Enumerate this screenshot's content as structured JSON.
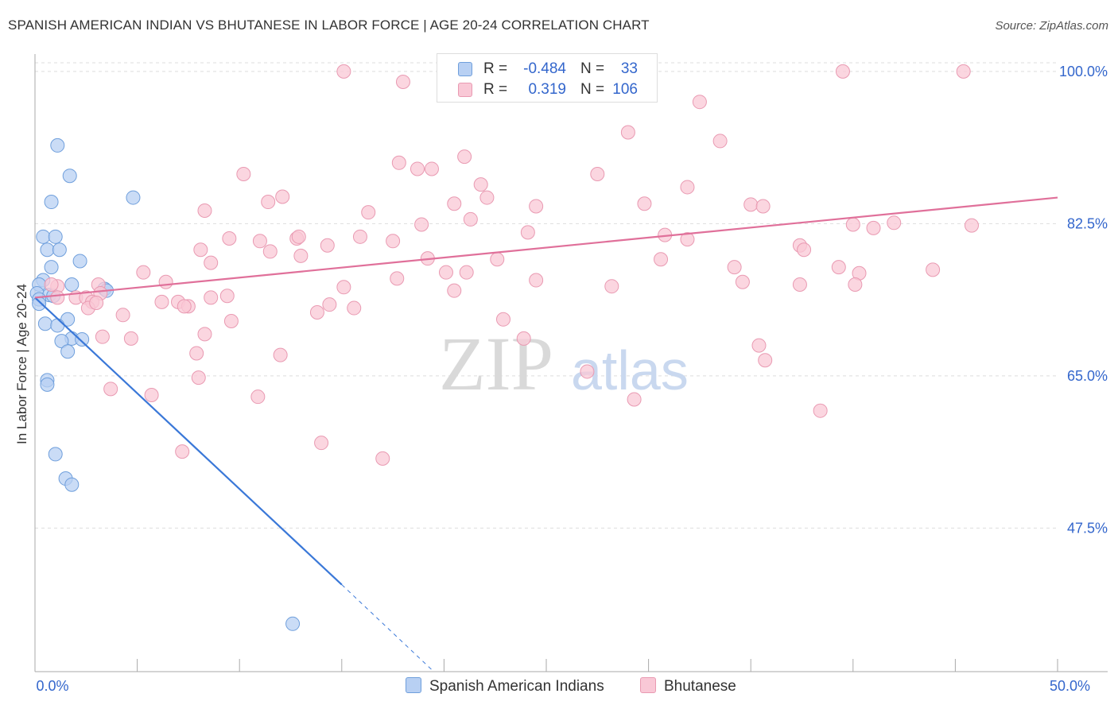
{
  "title": "SPANISH AMERICAN INDIAN VS BHUTANESE IN LABOR FORCE | AGE 20-24 CORRELATION CHART",
  "source": "Source: ZipAtlas.com",
  "colors": {
    "blue_fill": "#b8d0f3",
    "blue_stroke": "#6f9fdc",
    "blue_line": "#3a78d8",
    "pink_fill": "#f9c8d6",
    "pink_stroke": "#e99ab2",
    "pink_line": "#e0709a",
    "axis_label": "#3366cc",
    "grid": "#dddddd"
  },
  "legend": {
    "r_label": "R =",
    "n_label": "N =",
    "rows": [
      {
        "r": "-0.484",
        "n": "33",
        "color": "blue"
      },
      {
        "r": "0.319",
        "n": "106",
        "color": "pink"
      }
    ]
  },
  "series_legend": [
    "Spanish American Indians",
    "Bhutanese"
  ],
  "watermark": {
    "zip": "ZIP",
    "atlas": "atlas"
  },
  "chart_data": {
    "type": "scatter",
    "title": "SPANISH AMERICAN INDIAN VS BHUTANESE IN LABOR FORCE | AGE 20-24 CORRELATION CHART",
    "xlabel": "",
    "ylabel": "In Labor Force | Age 20-24",
    "xlim": [
      0,
      50
    ],
    "ylim": [
      31,
      102
    ],
    "x_tick_labels": [
      "0.0%",
      "50.0%"
    ],
    "y_ticks": [
      47.5,
      65.0,
      82.5,
      100.0
    ],
    "y_tick_labels": [
      "47.5%",
      "65.0%",
      "82.5%",
      "100.0%"
    ],
    "grid": true,
    "series": [
      {
        "name": "Spanish American Indians",
        "color": "blue",
        "r": -0.484,
        "n": 33,
        "points": [
          [
            1.1,
            91.5
          ],
          [
            1.7,
            88.0
          ],
          [
            0.8,
            85.0
          ],
          [
            4.8,
            85.5
          ],
          [
            0.4,
            81.0
          ],
          [
            1.0,
            81.0
          ],
          [
            0.6,
            79.5
          ],
          [
            1.2,
            79.5
          ],
          [
            2.2,
            78.2
          ],
          [
            0.8,
            77.5
          ],
          [
            0.4,
            76.0
          ],
          [
            0.2,
            75.5
          ],
          [
            1.8,
            75.5
          ],
          [
            3.4,
            75.0
          ],
          [
            3.5,
            74.8
          ],
          [
            0.1,
            74.5
          ],
          [
            0.7,
            74.3
          ],
          [
            0.9,
            74.2
          ],
          [
            0.2,
            73.8
          ],
          [
            0.2,
            73.3
          ],
          [
            1.6,
            71.5
          ],
          [
            0.5,
            71.0
          ],
          [
            1.1,
            70.8
          ],
          [
            1.8,
            69.3
          ],
          [
            1.3,
            69.0
          ],
          [
            2.3,
            69.2
          ],
          [
            1.6,
            67.8
          ],
          [
            0.6,
            64.5
          ],
          [
            0.6,
            64.0
          ],
          [
            1.0,
            56.0
          ],
          [
            1.5,
            53.2
          ],
          [
            1.8,
            52.5
          ],
          [
            12.6,
            36.5
          ]
        ],
        "trend": {
          "x0": 0.0,
          "y0": 74.0,
          "x1": 15.0,
          "y1": 41.0
        },
        "trend_extension": {
          "x0": 15.0,
          "y0": 41.0,
          "x1": 19.5,
          "y1": 31.0
        }
      },
      {
        "name": "Bhutanese",
        "color": "pink",
        "r": 0.319,
        "n": 106,
        "points": [
          [
            15.1,
            100.0
          ],
          [
            45.4,
            100.0
          ],
          [
            39.5,
            100.0
          ],
          [
            18.0,
            98.8
          ],
          [
            32.5,
            96.5
          ],
          [
            29.0,
            93.0
          ],
          [
            33.5,
            92.0
          ],
          [
            21.0,
            90.2
          ],
          [
            17.8,
            89.5
          ],
          [
            18.7,
            88.8
          ],
          [
            19.4,
            88.8
          ],
          [
            10.2,
            88.2
          ],
          [
            27.5,
            88.2
          ],
          [
            21.8,
            87.0
          ],
          [
            22.1,
            85.5
          ],
          [
            31.9,
            86.7
          ],
          [
            12.1,
            85.6
          ],
          [
            11.4,
            85.0
          ],
          [
            20.5,
            84.8
          ],
          [
            29.8,
            84.8
          ],
          [
            35.0,
            84.7
          ],
          [
            35.6,
            84.5
          ],
          [
            24.5,
            84.5
          ],
          [
            8.3,
            84.0
          ],
          [
            16.3,
            83.8
          ],
          [
            21.3,
            83.0
          ],
          [
            18.9,
            82.4
          ],
          [
            40.0,
            82.4
          ],
          [
            41.0,
            82.0
          ],
          [
            45.8,
            82.3
          ],
          [
            42.0,
            82.6
          ],
          [
            24.1,
            81.5
          ],
          [
            30.8,
            81.2
          ],
          [
            9.5,
            80.8
          ],
          [
            11.0,
            80.5
          ],
          [
            12.8,
            80.8
          ],
          [
            15.9,
            81.0
          ],
          [
            12.9,
            81.0
          ],
          [
            17.5,
            80.5
          ],
          [
            31.9,
            80.7
          ],
          [
            14.3,
            80.0
          ],
          [
            37.4,
            80.0
          ],
          [
            37.6,
            79.5
          ],
          [
            8.1,
            79.5
          ],
          [
            11.5,
            79.3
          ],
          [
            19.2,
            78.5
          ],
          [
            13.0,
            78.8
          ],
          [
            22.6,
            78.4
          ],
          [
            30.6,
            78.4
          ],
          [
            8.6,
            78.0
          ],
          [
            39.3,
            77.5
          ],
          [
            34.2,
            77.5
          ],
          [
            43.9,
            77.2
          ],
          [
            20.1,
            76.9
          ],
          [
            40.3,
            76.8
          ],
          [
            5.3,
            76.9
          ],
          [
            21.1,
            76.9
          ],
          [
            17.7,
            76.2
          ],
          [
            24.5,
            76.0
          ],
          [
            34.6,
            75.8
          ],
          [
            37.4,
            75.5
          ],
          [
            40.1,
            75.5
          ],
          [
            6.4,
            75.8
          ],
          [
            3.1,
            75.5
          ],
          [
            28.2,
            75.3
          ],
          [
            15.1,
            75.2
          ],
          [
            1.1,
            75.3
          ],
          [
            0.8,
            75.5
          ],
          [
            3.2,
            74.5
          ],
          [
            20.5,
            74.8
          ],
          [
            9.4,
            74.2
          ],
          [
            8.6,
            74.0
          ],
          [
            1.1,
            74.0
          ],
          [
            2.0,
            74.0
          ],
          [
            2.5,
            74.0
          ],
          [
            2.8,
            73.5
          ],
          [
            6.2,
            73.5
          ],
          [
            7.0,
            73.5
          ],
          [
            14.4,
            73.2
          ],
          [
            7.5,
            73.0
          ],
          [
            7.3,
            73.0
          ],
          [
            15.6,
            72.8
          ],
          [
            2.6,
            72.8
          ],
          [
            3.0,
            73.4
          ],
          [
            13.8,
            72.3
          ],
          [
            4.3,
            72.0
          ],
          [
            9.6,
            71.3
          ],
          [
            22.9,
            71.5
          ],
          [
            3.3,
            69.5
          ],
          [
            4.7,
            69.3
          ],
          [
            8.3,
            69.8
          ],
          [
            23.9,
            69.3
          ],
          [
            35.4,
            68.5
          ],
          [
            7.9,
            67.6
          ],
          [
            12.0,
            67.4
          ],
          [
            35.7,
            66.8
          ],
          [
            27.0,
            65.5
          ],
          [
            8.0,
            64.8
          ],
          [
            3.7,
            63.5
          ],
          [
            5.7,
            62.8
          ],
          [
            10.9,
            62.6
          ],
          [
            29.3,
            62.3
          ],
          [
            38.4,
            61.0
          ],
          [
            14.0,
            57.3
          ],
          [
            7.2,
            56.3
          ],
          [
            17.0,
            55.5
          ]
        ],
        "trend": {
          "x0": 0.0,
          "y0": 74.0,
          "x1": 50.0,
          "y1": 85.5
        }
      }
    ]
  }
}
